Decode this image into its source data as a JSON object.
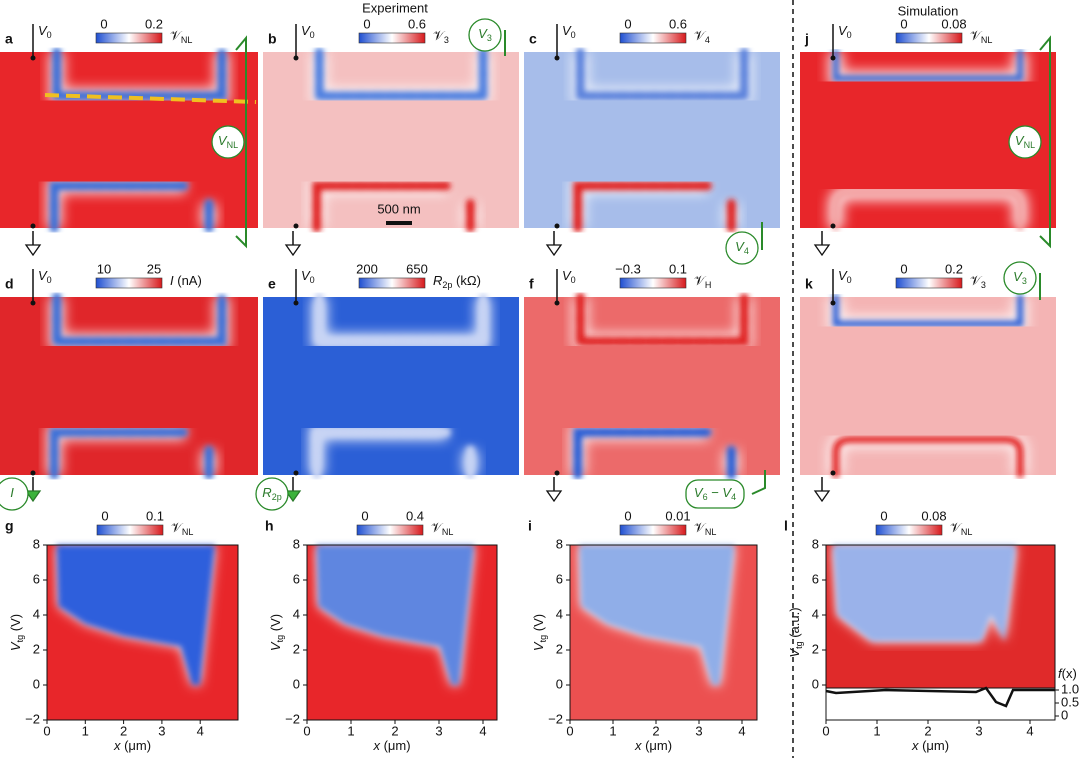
{
  "headers": {
    "experiment": "Experiment",
    "simulation": "Simulation"
  },
  "scale_bar": "500 nm",
  "panels": [
    {
      "letter": "a",
      "v0": [
        {
          "text": "V",
          "italic": true
        },
        {
          "text": "0",
          "sub": true
        }
      ],
      "ticks": [
        "0",
        "0.2"
      ],
      "label": [
        {
          "text": "𝒱"
        },
        {
          "text": "NL",
          "sub": true
        }
      ],
      "probe": [
        {
          "text": "V",
          "italic": true
        },
        {
          "text": "NL",
          "sub": true
        }
      ]
    },
    {
      "letter": "b",
      "v0": [
        {
          "text": "V",
          "italic": true
        },
        {
          "text": "0",
          "sub": true
        }
      ],
      "ticks": [
        "0",
        "0.6"
      ],
      "label": [
        {
          "text": "𝒱"
        },
        {
          "text": "3",
          "sub": true
        }
      ],
      "probe": [
        {
          "text": "V",
          "italic": true
        },
        {
          "text": "3",
          "sub": true
        }
      ]
    },
    {
      "letter": "c",
      "v0": [
        {
          "text": "V",
          "italic": true
        },
        {
          "text": "0",
          "sub": true
        }
      ],
      "ticks": [
        "0",
        "0.6"
      ],
      "label": [
        {
          "text": "𝒱"
        },
        {
          "text": "4",
          "sub": true
        }
      ],
      "probe": [
        {
          "text": "V",
          "italic": true
        },
        {
          "text": "4",
          "sub": true
        }
      ]
    },
    {
      "letter": "j",
      "v0": [
        {
          "text": "V",
          "italic": true
        },
        {
          "text": "0",
          "sub": true
        }
      ],
      "ticks": [
        "0",
        "0.08"
      ],
      "label": [
        {
          "text": "𝒱"
        },
        {
          "text": "NL",
          "sub": true
        }
      ],
      "probe": [
        {
          "text": "V",
          "italic": true
        },
        {
          "text": "NL",
          "sub": true
        }
      ]
    },
    {
      "letter": "d",
      "v0": [
        {
          "text": "V",
          "italic": true
        },
        {
          "text": "0",
          "sub": true
        }
      ],
      "ticks": [
        "10",
        "25"
      ],
      "label": [
        {
          "text": "I",
          "italic": true
        },
        {
          "text": " (nA)"
        }
      ],
      "probe": [
        {
          "text": "I",
          "italic": true
        }
      ]
    },
    {
      "letter": "e",
      "v0": [
        {
          "text": "V",
          "italic": true
        },
        {
          "text": "0",
          "sub": true
        }
      ],
      "ticks": [
        "200",
        "650"
      ],
      "label": [
        {
          "text": "R",
          "italic": true
        },
        {
          "text": "2p",
          "sub": true
        },
        {
          "text": " (kΩ)"
        }
      ],
      "probe": [
        {
          "text": "R",
          "italic": true
        },
        {
          "text": "2p",
          "sub": true
        }
      ]
    },
    {
      "letter": "f",
      "v0": [
        {
          "text": "V",
          "italic": true
        },
        {
          "text": "0",
          "sub": true
        }
      ],
      "ticks": [
        "−0.3",
        "0.1"
      ],
      "label": [
        {
          "text": "𝒱"
        },
        {
          "text": "H",
          "sub": true
        }
      ],
      "probe": [
        {
          "text": "V",
          "italic": true
        },
        {
          "text": "6",
          "sub": true
        },
        {
          "text": " − "
        },
        {
          "text": "V",
          "italic": true
        },
        {
          "text": "4",
          "sub": true
        }
      ]
    },
    {
      "letter": "k",
      "v0": [
        {
          "text": "V",
          "italic": true
        },
        {
          "text": "0",
          "sub": true
        }
      ],
      "ticks": [
        "0",
        "0.2"
      ],
      "label": [
        {
          "text": "𝒱"
        },
        {
          "text": "3",
          "sub": true
        }
      ],
      "probe": [
        {
          "text": "V",
          "italic": true
        },
        {
          "text": "3",
          "sub": true
        }
      ]
    },
    {
      "letter": "g",
      "ticks": [
        "0",
        "0.1"
      ],
      "label": [
        {
          "text": "𝒱"
        },
        {
          "text": "NL",
          "sub": true
        }
      ],
      "yticks": [
        "8",
        "6",
        "4",
        "2",
        "0",
        "−2"
      ],
      "xticks": [
        "0",
        "1",
        "2",
        "3",
        "4"
      ],
      "ylabel": [
        {
          "text": "V",
          "italic": true
        },
        {
          "text": "tg",
          "sub": true
        },
        {
          "text": " (V)"
        }
      ],
      "xlabel": [
        {
          "text": "x",
          "italic": true
        },
        {
          "text": " (μm)"
        }
      ]
    },
    {
      "letter": "h",
      "ticks": [
        "0",
        "0.4"
      ],
      "label": [
        {
          "text": "𝒱"
        },
        {
          "text": "NL",
          "sub": true
        }
      ],
      "yticks": [
        "8",
        "6",
        "4",
        "2",
        "0",
        "−2"
      ],
      "xticks": [
        "0",
        "1",
        "2",
        "3",
        "4"
      ],
      "ylabel": [
        {
          "text": "V",
          "italic": true
        },
        {
          "text": "tg",
          "sub": true
        },
        {
          "text": " (V)"
        }
      ],
      "xlabel": [
        {
          "text": "x",
          "italic": true
        },
        {
          "text": " (μm)"
        }
      ]
    },
    {
      "letter": "i",
      "ticks": [
        "0",
        "0.01"
      ],
      "label": [
        {
          "text": "𝒱"
        },
        {
          "text": "NL",
          "sub": true
        }
      ],
      "yticks": [
        "8",
        "6",
        "4",
        "2",
        "0",
        "−2"
      ],
      "xticks": [
        "0",
        "1",
        "2",
        "3",
        "4"
      ],
      "ylabel": [
        {
          "text": "V",
          "italic": true
        },
        {
          "text": "tg",
          "sub": true
        },
        {
          "text": " (V)"
        }
      ],
      "xlabel": [
        {
          "text": "x",
          "italic": true
        },
        {
          "text": " (μm)"
        }
      ]
    },
    {
      "letter": "l",
      "ticks": [
        "0",
        "0.08"
      ],
      "label": [
        {
          "text": "𝒱"
        },
        {
          "text": "NL",
          "sub": true
        }
      ],
      "yticks": [
        "8",
        "6",
        "4",
        "2",
        "0"
      ],
      "xticks": [
        "0",
        "1",
        "2",
        "3",
        "4"
      ],
      "ylabel": [
        {
          "text": "V",
          "italic": true
        },
        {
          "text": "tg",
          "sub": true
        },
        {
          "text": " (a.u.)"
        }
      ],
      "xlabel": [
        {
          "text": "x",
          "italic": true
        },
        {
          "text": " (μm)"
        }
      ],
      "fticks": [
        "1.0",
        "0.5",
        "0"
      ],
      "flabel": [
        {
          "text": "f",
          "italic": true
        },
        {
          "text": "(x)"
        }
      ]
    }
  ]
}
